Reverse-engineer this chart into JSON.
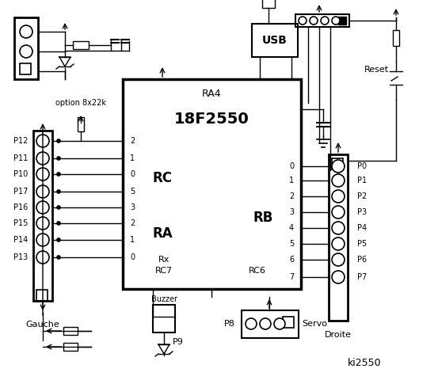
{
  "title": "ki2550",
  "chip_label": "18F2550",
  "chip_sublabel": "RA4",
  "rc_label": "RC",
  "ra_label": "RA",
  "rb_label": "RB",
  "rc_pins": [
    "2",
    "1",
    "0",
    "5",
    "3",
    "2",
    "1",
    "0"
  ],
  "rb_pins": [
    "0",
    "1",
    "2",
    "3",
    "4",
    "5",
    "6",
    "7"
  ],
  "left_labels": [
    "P12",
    "P11",
    "P10",
    "P17",
    "P16",
    "P15",
    "P14",
    "P13"
  ],
  "right_labels": [
    "P0",
    "P1",
    "P2",
    "P3",
    "P4",
    "P5",
    "P6",
    "P7"
  ],
  "option_label": "option 8x22k",
  "reset_label": "Reset",
  "usb_label": "USB",
  "rx_label": "Rx",
  "rc7_label": "RC7",
  "rc6_label": "RC6",
  "gauche_label": "Gauche",
  "droite_label": "Droite",
  "p9_label": "P9",
  "p8_label": "P8",
  "servo_label": "Servo",
  "buzzer_label": "Buzzer",
  "bg_color": "#ffffff",
  "fg_color": "#000000"
}
